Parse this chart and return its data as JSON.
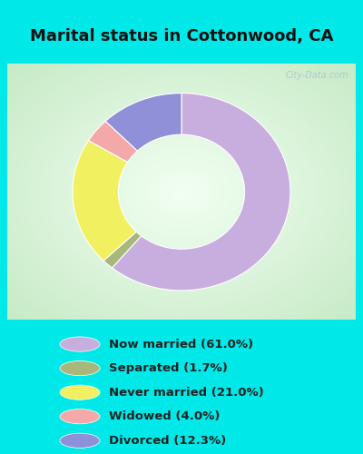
{
  "title": "Marital status in Cottonwood, CA",
  "slices": [
    {
      "label": "Now married (61.0%)",
      "value": 61.0,
      "color": "#c8aede"
    },
    {
      "label": "Separated (1.7%)",
      "value": 1.7,
      "color": "#a8b87a"
    },
    {
      "label": "Never married (21.0%)",
      "value": 21.0,
      "color": "#f0f060"
    },
    {
      "label": "Widowed (4.0%)",
      "value": 4.0,
      "color": "#f4a8a8"
    },
    {
      "label": "Divorced (12.3%)",
      "value": 12.3,
      "color": "#9090d8"
    }
  ],
  "bg_cyan": "#00e8e8",
  "bg_chart_center": "#f0faf0",
  "bg_chart_edge": "#c8e8c8",
  "title_fontsize": 13,
  "watermark": "City-Data.com",
  "donut_outer": 1.0,
  "donut_inner": 0.58,
  "start_angle": 90
}
